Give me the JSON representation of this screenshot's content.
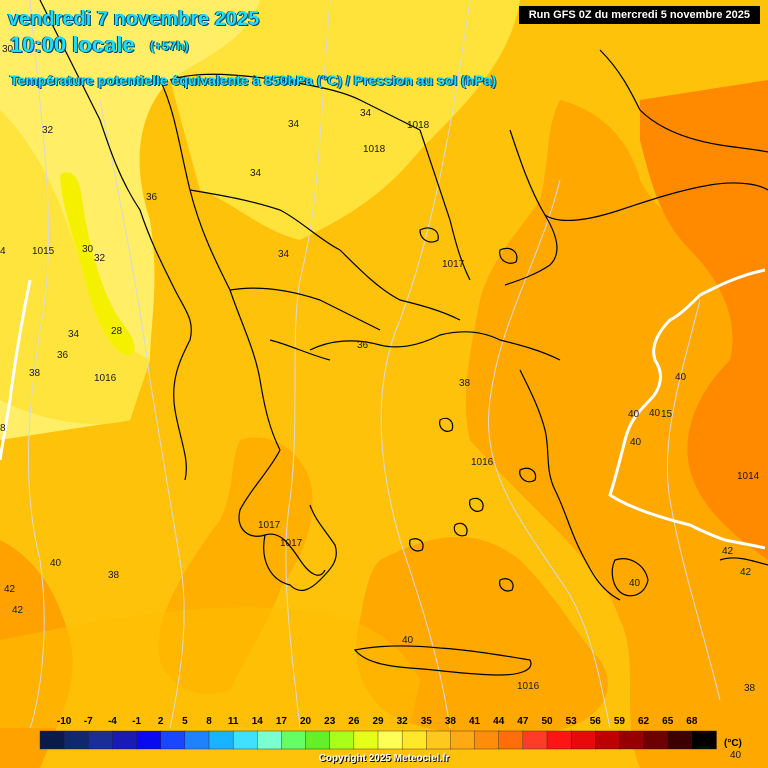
{
  "header": {
    "date": "vendredi 7 novembre 2025",
    "time": "10:00 locale",
    "step": "(+57h)",
    "subtitle": "Température potentielle équivalente à 850hPa (°C) / Pression au sol (hPa)",
    "run": "Run GFS 0Z du mercredi 5 novembre 2025"
  },
  "colors": {
    "sea_light": "#ffdd2a",
    "land_mid": "#ffc20a",
    "warm": "#ffa500",
    "warmer": "#ff8c00",
    "pale": "#ffef6a",
    "coastline": "#000000",
    "isobar": "#d8d8d8",
    "front": "#ffffff"
  },
  "map_labels": [
    {
      "text": "30"
    },
    {
      "text": "32"
    },
    {
      "text": "34"
    },
    {
      "text": "34"
    },
    {
      "text": "1018"
    },
    {
      "text": "1018"
    },
    {
      "text": "34"
    },
    {
      "text": "36"
    },
    {
      "text": "1015"
    },
    {
      "text": "30"
    },
    {
      "text": "32"
    },
    {
      "text": "34"
    },
    {
      "text": "1017"
    },
    {
      "text": "28"
    },
    {
      "text": "34"
    },
    {
      "text": "36"
    },
    {
      "text": "36"
    },
    {
      "text": "38"
    },
    {
      "text": "1016"
    },
    {
      "text": "38"
    },
    {
      "text": "40"
    },
    {
      "text": "40"
    },
    {
      "text": "40"
    },
    {
      "text": "15"
    },
    {
      "text": "40"
    },
    {
      "text": "1016"
    },
    {
      "text": "1014"
    },
    {
      "text": "1017"
    },
    {
      "text": "1017"
    },
    {
      "text": "40"
    },
    {
      "text": "38"
    },
    {
      "text": "42"
    },
    {
      "text": "42"
    },
    {
      "text": "42"
    },
    {
      "text": "42"
    },
    {
      "text": "40"
    },
    {
      "text": "40"
    },
    {
      "text": "1016"
    },
    {
      "text": "38"
    },
    {
      "text": "40"
    },
    {
      "text": "8"
    },
    {
      "text": "4"
    }
  ],
  "legend": {
    "unit": "(°C)",
    "ticks": [
      "-10",
      "-7",
      "-4",
      "-1",
      "2",
      "5",
      "8",
      "11",
      "14",
      "17",
      "20",
      "23",
      "26",
      "29",
      "32",
      "35",
      "38",
      "41",
      "44",
      "47",
      "50",
      "53",
      "56",
      "59",
      "62",
      "65",
      "68"
    ],
    "colors": [
      "#0a1a4a",
      "#10286e",
      "#1a2e96",
      "#1a1ab4",
      "#0a0af0",
      "#1a46ff",
      "#1e82ff",
      "#18b4ff",
      "#40e0ff",
      "#7affd0",
      "#64ff64",
      "#64f028",
      "#aaff1a",
      "#e6ff1a",
      "#ffff55",
      "#ffe82a",
      "#ffc81e",
      "#ffaa14",
      "#ff8c0a",
      "#ff6e0a",
      "#ff3c28",
      "#ff1414",
      "#e60a0a",
      "#be0000",
      "#960000",
      "#6e0000",
      "#3c0000",
      "#000000"
    ]
  },
  "copyright": "Copyright 2025 Meteociel.fr"
}
